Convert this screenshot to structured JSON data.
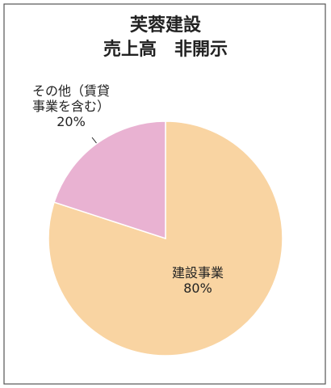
{
  "chart_data": {
    "type": "pie",
    "title": [
      "芙蓉建設",
      "売上高　非開示"
    ],
    "categories": [
      "建設事業",
      "その他（賃貸事業を含む）"
    ],
    "values": [
      80,
      20
    ],
    "value_labels": [
      "80%",
      "20%"
    ],
    "colors": [
      "#f9d4a2",
      "#e9b2d2"
    ]
  }
}
